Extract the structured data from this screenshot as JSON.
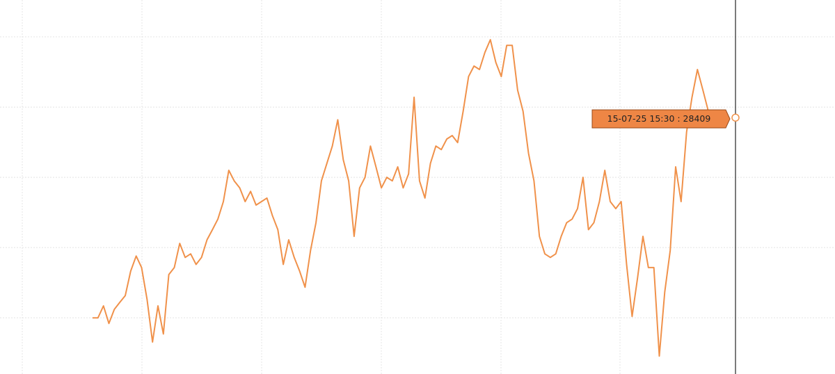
{
  "chart_data": {
    "type": "line",
    "color": "#f0914a",
    "values": [
      28352,
      28352,
      28355.4,
      28350.4,
      28354.4,
      28356.4,
      28358.3,
      28365.3,
      28369.6,
      28366.3,
      28357.3,
      28345.1,
      28355.4,
      28347.4,
      28364.3,
      28366.3,
      28373.2,
      28369.2,
      28370.2,
      28367.2,
      28369.2,
      28374.2,
      28377.1,
      28380.1,
      28385.1,
      28394.0,
      28391.0,
      28389.0,
      28385.1,
      28388.0,
      28384.1,
      28385.1,
      28386.1,
      28381.1,
      28377.1,
      28367.2,
      28374.2,
      28369.2,
      28365.3,
      28360.7,
      28371.2,
      28379.1,
      28391.0,
      28396.0,
      28400.9,
      28408.4,
      28397.0,
      28391.0,
      28375.2,
      28389.0,
      28392.0,
      28400.9,
      28395.0,
      28389.0,
      28392.0,
      28391.0,
      28395.0,
      28389.0,
      28393.0,
      28414.8,
      28391.0,
      28386.1,
      28396.0,
      28400.9,
      28399.9,
      28402.9,
      28403.9,
      28401.9,
      28410.8,
      28420.7,
      28423.7,
      28422.7,
      28427.6,
      28431.2,
      28424.7,
      28420.7,
      28429.6,
      28429.6,
      28416.8,
      28410.8,
      28398.9,
      28391.0,
      28375.2,
      28370.2,
      28369.2,
      28370.2,
      28375.2,
      28379.1,
      28380.1,
      28383.1,
      28392.0,
      28377.1,
      28379.1,
      28385.1,
      28394.0,
      28385.1,
      28383.1,
      28385.1,
      28367.2,
      28352.4,
      28363.3,
      28375.2,
      28366.3,
      28366.3,
      28341.1,
      28359.3,
      28371.2,
      28395.0,
      28385.1,
      28404.9,
      28414.8,
      28422.7,
      28416.8,
      28410.8
    ],
    "ylim": [
      28336,
      28442.5
    ],
    "yticks": [
      28352,
      28372,
      28392,
      28412,
      28432
    ],
    "grid": true,
    "tooltip": {
      "label": "15-07-25 15:30 : 28409",
      "value": 28409
    }
  }
}
